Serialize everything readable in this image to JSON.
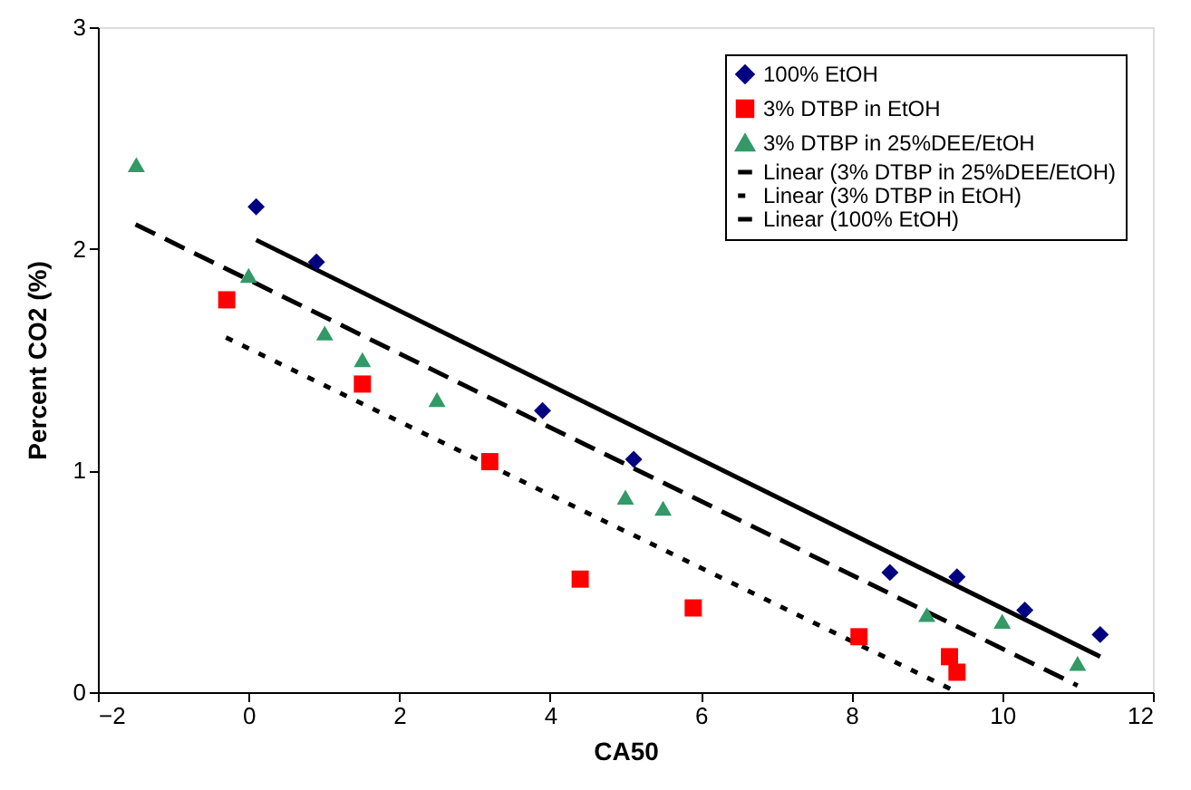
{
  "chart_data": {
    "type": "scatter",
    "xlabel": "CA50",
    "ylabel": "Percent CO2 (%)",
    "xlim": [
      -2,
      12
    ],
    "xticks": [
      -2,
      0,
      2,
      4,
      6,
      8,
      10,
      12
    ],
    "ylim": [
      0,
      3
    ],
    "yticks": [
      0,
      1,
      2,
      3
    ],
    "grid": false,
    "legend": "top right",
    "series": [
      {
        "name": "100% EtOH",
        "type": "scatter",
        "marker": "diamond",
        "color": "#000080",
        "x": [
          0.1,
          0.9,
          3.9,
          5.11,
          8.51,
          9.4,
          10.3,
          11.3
        ],
        "values": [
          2.19,
          1.94,
          1.27,
          1.05,
          0.54,
          0.52,
          0.37,
          0.26
        ]
      },
      {
        "name": "3% DTBP in EtOH",
        "type": "scatter",
        "marker": "square",
        "color": "#ff0000",
        "x": [
          -0.29,
          1.51,
          3.2,
          4.4,
          5.9,
          8.1,
          9.3,
          9.4
        ],
        "values": [
          1.77,
          1.39,
          1.04,
          0.51,
          0.38,
          0.25,
          0.16,
          0.09
        ]
      },
      {
        "name": "3% DTBP in 25%DEE/EtOH",
        "type": "scatter",
        "marker": "triangle",
        "color": "#339966",
        "x": [
          -1.49,
          0.0,
          1.01,
          1.51,
          2.5,
          5.0,
          5.5,
          9.0,
          10.0,
          11.0
        ],
        "values": [
          2.38,
          1.88,
          1.62,
          1.5,
          1.32,
          0.88,
          0.83,
          0.35,
          0.32,
          0.13
        ]
      },
      {
        "name": "Linear (3% DTBP in 25%DEE/EtOH)",
        "type": "line",
        "line_style": "dashed",
        "color": "#000000",
        "x": [
          -1.5,
          11.0
        ],
        "values": [
          2.11,
          0.03
        ]
      },
      {
        "name": "Linear (3% DTBP in EtOH)",
        "type": "line",
        "line_style": "dotted",
        "color": "#000000",
        "x": [
          -0.3,
          9.4
        ],
        "values": [
          1.6,
          0.0
        ]
      },
      {
        "name": "Linear (100% EtOH)",
        "type": "line",
        "line_style": "solid",
        "color": "#000000",
        "x": [
          0.1,
          11.3
        ],
        "values": [
          2.04,
          0.16
        ]
      }
    ]
  }
}
